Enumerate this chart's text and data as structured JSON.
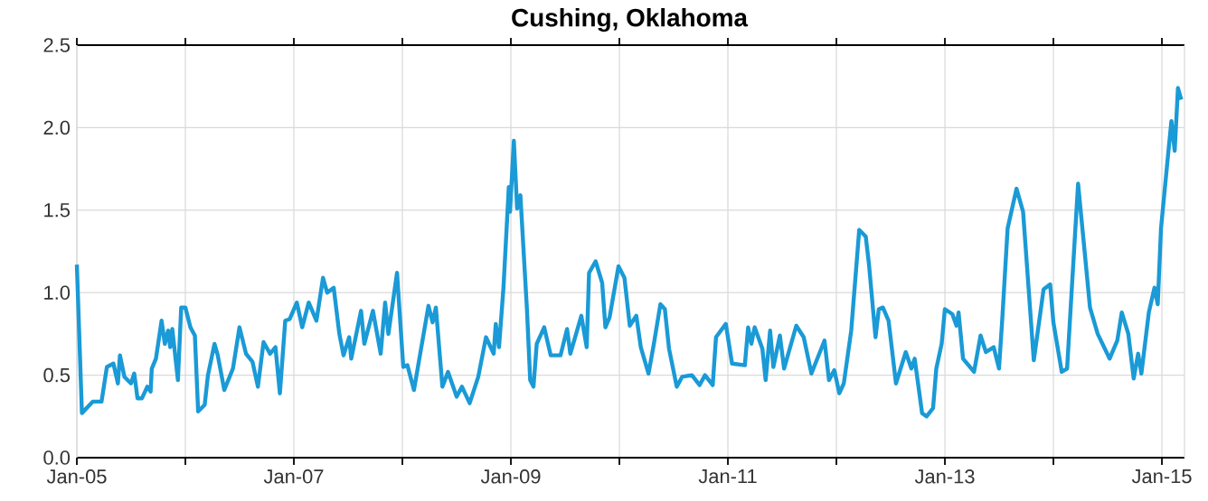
{
  "chart_data": {
    "type": "line",
    "title": "Cushing, Oklahoma",
    "color": "#1a9ad6",
    "x": [
      "2005-01-01",
      "2005-01-18",
      "2005-02-24",
      "2005-03-25",
      "2005-04-12",
      "2005-05-04",
      "2005-05-19",
      "2005-05-26",
      "2005-06-10",
      "2005-07-02",
      "2005-07-13",
      "2005-07-24",
      "2005-08-08",
      "2005-08-26",
      "2005-09-06",
      "2005-09-10",
      "2005-09-24",
      "2005-10-13",
      "2005-10-24",
      "2005-11-04",
      "2005-11-11",
      "2005-11-18",
      "2005-12-07",
      "2005-12-18",
      "2006-01-01",
      "2006-01-18",
      "2006-02-02",
      "2006-02-13",
      "2006-03-07",
      "2006-03-18",
      "2006-04-09",
      "2006-04-20",
      "2006-05-12",
      "2006-06-10",
      "2006-07-02",
      "2006-07-24",
      "2006-08-15",
      "2006-09-02",
      "2006-09-21",
      "2006-10-13",
      "2006-10-31",
      "2006-11-15",
      "2006-12-03",
      "2006-12-18",
      "2007-01-11",
      "2007-01-29",
      "2007-02-20",
      "2007-03-18",
      "2007-04-09",
      "2007-04-23",
      "2007-05-15",
      "2007-06-03",
      "2007-06-17",
      "2007-07-06",
      "2007-07-13",
      "2007-08-15",
      "2007-08-26",
      "2007-09-24",
      "2007-10-20",
      "2007-11-04",
      "2007-11-15",
      "2007-12-14",
      "2008-01-04",
      "2008-01-18",
      "2008-02-09",
      "2008-03-29",
      "2008-04-12",
      "2008-04-23",
      "2008-05-15",
      "2008-06-03",
      "2008-07-02",
      "2008-07-20",
      "2008-08-15",
      "2008-09-13",
      "2008-10-09",
      "2008-11-04",
      "2008-11-11",
      "2008-11-22",
      "2008-12-07",
      "2008-12-25",
      "2008-12-29",
      "2009-01-11",
      "2009-01-22",
      "2009-02-02",
      "2009-02-24",
      "2009-03-07",
      "2009-03-18",
      "2009-03-29",
      "2009-04-23",
      "2009-05-15",
      "2009-06-17",
      "2009-07-09",
      "2009-07-20",
      "2009-08-26",
      "2009-09-13",
      "2009-09-21",
      "2009-10-13",
      "2009-11-04",
      "2009-11-15",
      "2009-11-29",
      "2009-12-29",
      "2010-01-18",
      "2010-02-05",
      "2010-02-27",
      "2010-03-14",
      "2010-04-09",
      "2010-04-27",
      "2010-05-19",
      "2010-06-03",
      "2010-06-17",
      "2010-07-13",
      "2010-07-31",
      "2010-09-02",
      "2010-09-28",
      "2010-10-16",
      "2010-11-11",
      "2010-11-22",
      "2010-12-25",
      "2011-01-15",
      "2011-02-27",
      "2011-03-10",
      "2011-03-21",
      "2011-04-01",
      "2011-04-27",
      "2011-05-08",
      "2011-05-23",
      "2011-06-03",
      "2011-06-25",
      "2011-07-09",
      "2011-08-19",
      "2011-09-13",
      "2011-10-09",
      "2011-11-22",
      "2011-12-07",
      "2011-12-25",
      "2012-01-11",
      "2012-01-26",
      "2012-02-20",
      "2012-03-18",
      "2012-04-09",
      "2012-04-20",
      "2012-05-12",
      "2012-05-23",
      "2012-06-06",
      "2012-06-25",
      "2012-07-20",
      "2012-08-22",
      "2012-09-10",
      "2012-09-21",
      "2012-10-16",
      "2012-10-31",
      "2012-11-22",
      "2012-12-03",
      "2012-12-21",
      "2013-01-01",
      "2013-01-26",
      "2013-02-09",
      "2013-02-16",
      "2013-03-03",
      "2013-04-09",
      "2013-05-01",
      "2013-05-19",
      "2013-06-14",
      "2013-07-02",
      "2013-07-13",
      "2013-07-31",
      "2013-08-30",
      "2013-09-21",
      "2013-10-27",
      "2013-11-29",
      "2013-12-21",
      "2014-01-01",
      "2014-01-29",
      "2014-02-16",
      "2014-03-07",
      "2014-03-25",
      "2014-04-16",
      "2014-05-04",
      "2014-05-30",
      "2014-07-09",
      "2014-08-04",
      "2014-08-19",
      "2014-09-10",
      "2014-09-28",
      "2014-10-13",
      "2014-10-24",
      "2014-11-18",
      "2014-12-07",
      "2014-12-18",
      "2014-12-29",
      "2015-01-22",
      "2015-02-02",
      "2015-02-13",
      "2015-02-24",
      "2015-03-07"
    ],
    "values": [
      1.17,
      0.27,
      0.34,
      0.34,
      0.55,
      0.57,
      0.45,
      0.62,
      0.49,
      0.45,
      0.51,
      0.36,
      0.36,
      0.43,
      0.4,
      0.54,
      0.6,
      0.83,
      0.69,
      0.77,
      0.67,
      0.78,
      0.47,
      0.91,
      0.91,
      0.79,
      0.74,
      0.28,
      0.32,
      0.5,
      0.69,
      0.62,
      0.41,
      0.54,
      0.79,
      0.63,
      0.58,
      0.43,
      0.7,
      0.63,
      0.67,
      0.39,
      0.83,
      0.84,
      0.94,
      0.79,
      0.94,
      0.83,
      1.09,
      1.0,
      1.03,
      0.75,
      0.62,
      0.73,
      0.6,
      0.89,
      0.69,
      0.89,
      0.63,
      0.94,
      0.75,
      1.12,
      0.55,
      0.56,
      0.41,
      0.92,
      0.82,
      0.91,
      0.43,
      0.52,
      0.37,
      0.43,
      0.33,
      0.49,
      0.73,
      0.63,
      0.81,
      0.67,
      1.03,
      1.64,
      1.49,
      1.92,
      1.51,
      1.59,
      0.9,
      0.47,
      0.43,
      0.69,
      0.79,
      0.62,
      0.62,
      0.78,
      0.63,
      0.86,
      0.67,
      1.12,
      1.19,
      1.06,
      0.79,
      0.85,
      1.16,
      1.09,
      0.8,
      0.86,
      0.67,
      0.51,
      0.69,
      0.93,
      0.9,
      0.66,
      0.43,
      0.49,
      0.5,
      0.44,
      0.5,
      0.44,
      0.73,
      0.81,
      0.57,
      0.56,
      0.79,
      0.69,
      0.79,
      0.66,
      0.47,
      0.77,
      0.55,
      0.74,
      0.54,
      0.8,
      0.73,
      0.51,
      0.71,
      0.47,
      0.53,
      0.39,
      0.45,
      0.77,
      1.38,
      1.34,
      1.17,
      0.73,
      0.9,
      0.91,
      0.83,
      0.45,
      0.64,
      0.54,
      0.6,
      0.27,
      0.25,
      0.3,
      0.54,
      0.69,
      0.9,
      0.87,
      0.8,
      0.88,
      0.6,
      0.52,
      0.74,
      0.64,
      0.67,
      0.54,
      0.84,
      1.39,
      1.63,
      1.49,
      0.59,
      1.02,
      1.05,
      0.82,
      0.52,
      0.54,
      1.12,
      1.66,
      1.25,
      0.91,
      0.75,
      0.6,
      0.71,
      0.88,
      0.75,
      0.48,
      0.63,
      0.51,
      0.88,
      1.03,
      0.93,
      1.39,
      1.84,
      2.04,
      1.86,
      2.24,
      2.17
    ],
    "xlim": [
      "2005-01-01",
      "2015-03-18"
    ],
    "xticks": [
      {
        "value": "2005-01-01",
        "label": "Jan-05"
      },
      {
        "value": "2006-01-01",
        "label": null
      },
      {
        "value": "2007-01-01",
        "label": "Jan-07"
      },
      {
        "value": "2008-01-01",
        "label": null
      },
      {
        "value": "2009-01-01",
        "label": "Jan-09"
      },
      {
        "value": "2010-01-01",
        "label": null
      },
      {
        "value": "2011-01-01",
        "label": "Jan-11"
      },
      {
        "value": "2012-01-01",
        "label": null
      },
      {
        "value": "2013-01-01",
        "label": "Jan-13"
      },
      {
        "value": "2014-01-01",
        "label": null
      },
      {
        "value": "2015-01-01",
        "label": "Jan-15"
      }
    ],
    "ylim": [
      0,
      2.5
    ],
    "yticks": [
      {
        "value": 0,
        "label": "0.0"
      },
      {
        "value": 0.5,
        "label": "0.5"
      },
      {
        "value": 1,
        "label": "1.0"
      },
      {
        "value": 1.5,
        "label": "1.5"
      },
      {
        "value": 2,
        "label": "2.0"
      },
      {
        "value": 2.5,
        "label": "2.5"
      }
    ],
    "grid": true
  }
}
